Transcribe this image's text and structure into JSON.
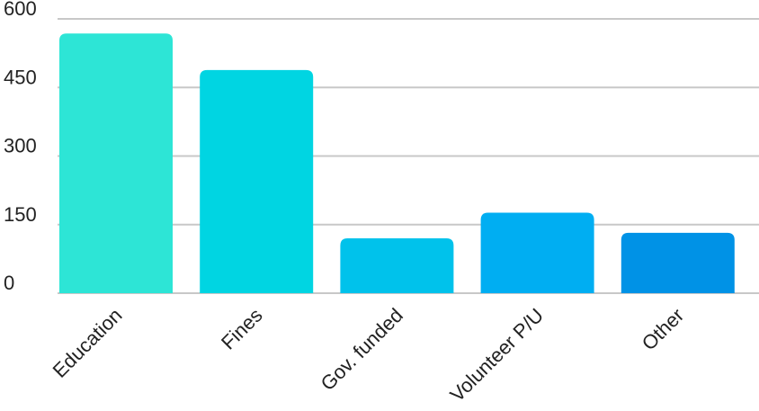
{
  "chart_data": {
    "type": "bar",
    "title": "",
    "xlabel": "",
    "ylabel": "",
    "categories": [
      "Education",
      "Fines",
      "Gov. funded",
      "Volunteer P/U",
      "Other"
    ],
    "values": [
      568,
      488,
      120,
      176,
      132
    ],
    "ylim": [
      0,
      600
    ],
    "yticks": [
      0,
      150,
      300,
      450,
      600
    ],
    "grid": true,
    "legend": "none",
    "colors": [
      "#2de5d6",
      "#00d5e2",
      "#00c2eb",
      "#00aef2",
      "#0092e6"
    ]
  }
}
